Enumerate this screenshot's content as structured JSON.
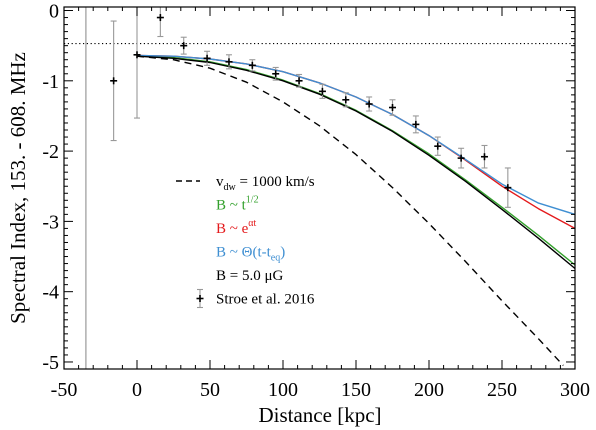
{
  "chart_data": {
    "type": "line",
    "xlabel": "Distance [kpc]",
    "ylabel": "Spectral Index, 153. - 608. MHz",
    "xlim": [
      -50,
      300
    ],
    "ylim": [
      -5.1,
      0.05
    ],
    "x_ticks": [
      -50,
      0,
      50,
      100,
      150,
      200,
      250,
      300
    ],
    "x_tick_labels": [
      "-50",
      "0",
      "50",
      "100",
      "150",
      "200",
      "250",
      "300"
    ],
    "y_ticks": [
      0,
      -1,
      -2,
      -3,
      -4,
      -5
    ],
    "y_tick_labels": [
      "0",
      "-1",
      "-2",
      "-3",
      "-4",
      "-5"
    ],
    "grid": false,
    "legend_position": "lower-left",
    "reference_lines": [
      {
        "orientation": "horizontal",
        "y": -0.47,
        "style": "dotted",
        "color": "#000000"
      },
      {
        "orientation": "vertical",
        "x": -35,
        "style": "solid",
        "color": "#999999"
      }
    ],
    "series": [
      {
        "name": "v_dw = 1000 km/s",
        "color": "#000000",
        "style": "dashed",
        "x": [
          0,
          25,
          50,
          75,
          100,
          125,
          150,
          175,
          200,
          225,
          250,
          275,
          292
        ],
        "y": [
          -0.65,
          -0.7,
          -0.82,
          -1.02,
          -1.3,
          -1.64,
          -2.05,
          -2.52,
          -3.03,
          -3.57,
          -4.13,
          -4.67,
          -5.05
        ]
      },
      {
        "name": "B ~ t^1/2",
        "color": "#33a02c",
        "style": "solid",
        "x": [
          0,
          25,
          50,
          75,
          100,
          125,
          150,
          175,
          200,
          225,
          250,
          275,
          300
        ],
        "y": [
          -0.64,
          -0.67,
          -0.73,
          -0.84,
          -0.99,
          -1.18,
          -1.42,
          -1.71,
          -2.04,
          -2.41,
          -2.8,
          -3.2,
          -3.62
        ]
      },
      {
        "name": "B ~ e^at",
        "color": "#e41a1c",
        "style": "solid",
        "x": [
          0,
          25,
          50,
          75,
          100,
          125,
          150,
          175,
          200,
          225,
          250,
          275,
          300
        ],
        "y": [
          -0.64,
          -0.65,
          -0.69,
          -0.76,
          -0.87,
          -1.03,
          -1.23,
          -1.48,
          -1.78,
          -2.13,
          -2.5,
          -2.82,
          -3.1
        ]
      },
      {
        "name": "B ~ Θ(t-t_eq)",
        "color": "#3f8fd2",
        "style": "solid",
        "x": [
          0,
          25,
          50,
          75,
          100,
          125,
          150,
          175,
          200,
          225,
          250,
          275,
          300
        ],
        "y": [
          -0.64,
          -0.65,
          -0.69,
          -0.76,
          -0.87,
          -1.03,
          -1.23,
          -1.48,
          -1.78,
          -2.12,
          -2.47,
          -2.74,
          -2.9
        ]
      },
      {
        "name": "B = 5.0 μG",
        "color": "#000000",
        "style": "solid",
        "x": [
          0,
          25,
          50,
          75,
          100,
          125,
          150,
          175,
          200,
          225,
          250,
          275,
          300
        ],
        "y": [
          -0.65,
          -0.68,
          -0.74,
          -0.85,
          -1.0,
          -1.19,
          -1.43,
          -1.72,
          -2.06,
          -2.43,
          -2.83,
          -3.24,
          -3.67
        ]
      }
    ],
    "observations": {
      "name": "Stroe et al. 2016",
      "marker_color": "#000000",
      "errorbar_color": "#999999",
      "points": [
        {
          "x": -16,
          "y": -1.0,
          "err": 0.85
        },
        {
          "x": 0,
          "y": -0.63,
          "err": 0.9
        },
        {
          "x": 16,
          "y": -0.1,
          "err": 0.27
        },
        {
          "x": 32,
          "y": -0.5,
          "err": 0.12
        },
        {
          "x": 48,
          "y": -0.68,
          "err": 0.1
        },
        {
          "x": 63,
          "y": -0.73,
          "err": 0.1
        },
        {
          "x": 79,
          "y": -0.78,
          "err": 0.08
        },
        {
          "x": 95,
          "y": -0.9,
          "err": 0.09
        },
        {
          "x": 111,
          "y": -1.0,
          "err": 0.09
        },
        {
          "x": 127,
          "y": -1.15,
          "err": 0.1
        },
        {
          "x": 143,
          "y": -1.27,
          "err": 0.1
        },
        {
          "x": 159,
          "y": -1.33,
          "err": 0.1
        },
        {
          "x": 175,
          "y": -1.38,
          "err": 0.11
        },
        {
          "x": 191,
          "y": -1.62,
          "err": 0.12
        },
        {
          "x": 206,
          "y": -1.93,
          "err": 0.13
        },
        {
          "x": 222,
          "y": -2.1,
          "err": 0.14
        },
        {
          "x": 238,
          "y": -2.08,
          "err": 0.16
        },
        {
          "x": 254,
          "y": -2.52,
          "err": 0.28
        }
      ]
    },
    "legend": {
      "entries": [
        {
          "main": "v",
          "sub": "dw",
          "rest": " = 1000 km/s",
          "color": "#000000"
        },
        {
          "main": "B ~ t",
          "sup": "1/2",
          "color": "#33a02c"
        },
        {
          "main": "B ~ e",
          "sup": "αt",
          "color": "#e41a1c"
        },
        {
          "main": "B ~ Θ(t-t",
          "sub": "eq",
          "rest": ")",
          "color": "#3f8fd2"
        },
        {
          "main": "B = 5.0 μG",
          "color": "#000000"
        },
        {
          "main": "Stroe et al. 2016",
          "color": "#000000"
        }
      ]
    }
  }
}
